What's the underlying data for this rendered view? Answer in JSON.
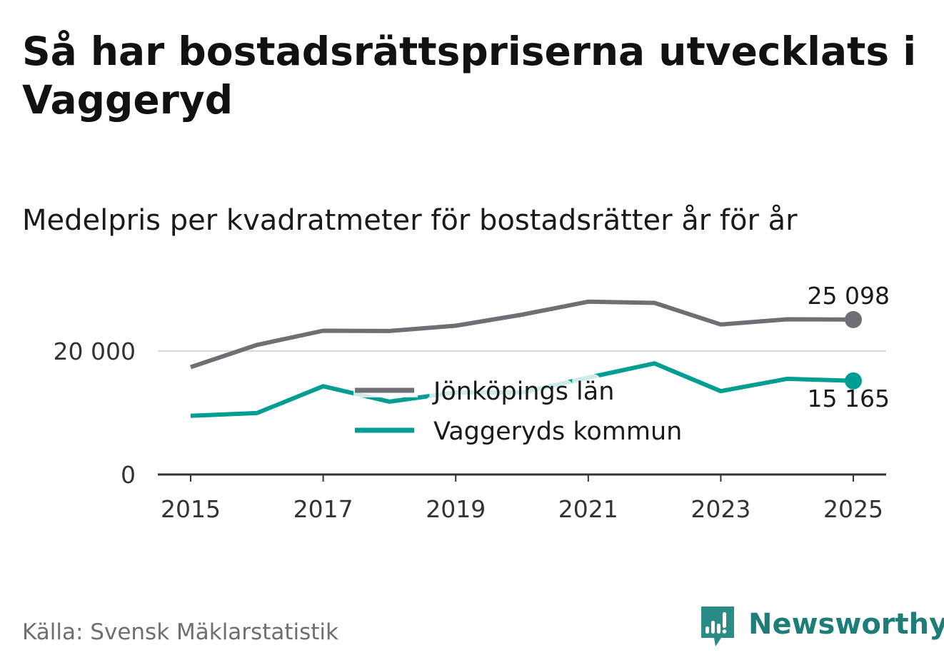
{
  "title": "Så har bostadsrättspriserna utvecklats i Vaggeryd",
  "subtitle": "Medelpris per kvadratmeter för bostadsrätter år för år",
  "source": "Källa: Svensk Mäklarstatistik",
  "brand": {
    "name": "Newsworthy",
    "icon": "newsworthy-bar-chart-icon",
    "color": "#2a8c86"
  },
  "colors": {
    "series_1": "#6f6e75",
    "series_2": "#009e92",
    "grid": "#d9d9d9",
    "axis": "#333333"
  },
  "chart_data": {
    "type": "line",
    "title": "Medelpris per kvadratmeter för bostadsrätter år för år",
    "xlabel": "",
    "ylabel": "",
    "x": [
      2015,
      2016,
      2017,
      2018,
      2019,
      2020,
      2021,
      2022,
      2023,
      2024,
      2025
    ],
    "x_ticks": [
      "2015",
      "2017",
      "2019",
      "2021",
      "2023",
      "2025"
    ],
    "y_ticks": [
      0,
      20000
    ],
    "y_tick_labels": [
      "0",
      "20 000"
    ],
    "ylim": [
      0,
      29000
    ],
    "grid": true,
    "legend_position": "center",
    "series": [
      {
        "name": "Jönköpings län",
        "color": "#6f6e75",
        "values": [
          17400,
          21000,
          23300,
          23250,
          24100,
          25900,
          28000,
          27800,
          24300,
          25150,
          25098
        ],
        "end_label": "25 098"
      },
      {
        "name": "Vaggeryds kommun",
        "color": "#009e92",
        "values": [
          9500,
          9950,
          14300,
          11800,
          13300,
          13300,
          15700,
          18000,
          13500,
          15500,
          15165
        ],
        "end_label": "15 165"
      }
    ]
  }
}
